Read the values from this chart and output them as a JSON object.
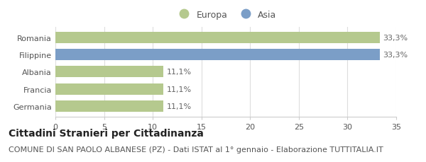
{
  "categories": [
    "Romania",
    "Filippine",
    "Albania",
    "Francia",
    "Germania"
  ],
  "values": [
    33.3,
    33.3,
    11.1,
    11.1,
    11.1
  ],
  "bar_colors": [
    "#b5c98e",
    "#7b9ec7",
    "#b5c98e",
    "#b5c98e",
    "#b5c98e"
  ],
  "legend_labels": [
    "Europa",
    "Asia"
  ],
  "legend_colors": [
    "#b5c98e",
    "#7b9ec7"
  ],
  "bar_labels": [
    "33,3%",
    "33,3%",
    "11,1%",
    "11,1%",
    "11,1%"
  ],
  "xlim": [
    0,
    35
  ],
  "xticks": [
    0,
    5,
    10,
    15,
    20,
    25,
    30,
    35
  ],
  "title": "Cittadini Stranieri per Cittadinanza",
  "subtitle": "COMUNE DI SAN PAOLO ALBANESE (PZ) - Dati ISTAT al 1° gennaio - Elaborazione TUTTITALIA.IT",
  "title_fontsize": 10,
  "subtitle_fontsize": 8,
  "label_fontsize": 8,
  "tick_fontsize": 8,
  "legend_fontsize": 9,
  "bar_height": 0.65,
  "background_color": "#ffffff"
}
